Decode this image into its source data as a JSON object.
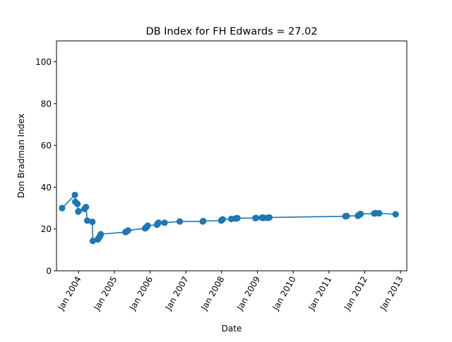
{
  "chart_data": {
    "type": "line",
    "title": "DB Index for FH Edwards = 27.02",
    "xlabel": "Date",
    "ylabel": "Don Bradman Index",
    "ylim": [
      0,
      110
    ],
    "xlim": [
      "2003-05-21",
      "2013-03-06"
    ],
    "yticks": [
      0,
      20,
      40,
      60,
      80,
      100
    ],
    "xticks": [
      {
        "date": "2004-01-01",
        "label": "Jan 2004"
      },
      {
        "date": "2005-01-01",
        "label": "Jan 2005"
      },
      {
        "date": "2006-01-01",
        "label": "Jan 2006"
      },
      {
        "date": "2007-01-01",
        "label": "Jan 2007"
      },
      {
        "date": "2008-01-01",
        "label": "Jan 2008"
      },
      {
        "date": "2009-01-01",
        "label": "Jan 2009"
      },
      {
        "date": "2010-01-01",
        "label": "Jan 2010"
      },
      {
        "date": "2011-01-01",
        "label": "Jan 2011"
      },
      {
        "date": "2012-01-01",
        "label": "Jan 2012"
      },
      {
        "date": "2013-01-01",
        "label": "Jan 2013"
      }
    ],
    "grid": false,
    "color": "#1f77b4",
    "x": [
      "2003-07-17",
      "2003-11-25",
      "2003-11-29",
      "2003-12-21",
      "2003-12-29",
      "2004-01-02",
      "2004-03-02",
      "2004-03-17",
      "2004-03-30",
      "2004-05-21",
      "2004-05-26",
      "2004-07-16",
      "2004-07-22",
      "2004-08-04",
      "2004-08-11",
      "2004-08-15",
      "2005-04-24",
      "2005-05-04",
      "2005-05-21",
      "2005-11-10",
      "2005-11-17",
      "2005-11-28",
      "2005-12-07",
      "2006-03-12",
      "2006-03-19",
      "2006-03-28",
      "2006-05-28",
      "2006-10-30",
      "2007-06-22",
      "2007-06-28",
      "2007-12-28",
      "2008-01-03",
      "2008-01-12",
      "2008-04-09",
      "2008-05-23",
      "2008-06-01",
      "2008-06-10",
      "2008-12-11",
      "2008-12-18",
      "2009-02-15",
      "2009-02-25",
      "2009-03-05",
      "2009-04-14",
      "2009-04-22",
      "2009-05-03",
      "2011-06-18",
      "2011-06-25",
      "2011-07-02",
      "2011-10-24",
      "2011-10-31",
      "2011-11-07",
      "2011-11-14",
      "2011-11-21",
      "2012-04-07",
      "2012-04-15",
      "2012-04-22",
      "2012-05-28",
      "2012-11-12"
    ],
    "y": [
      30.0,
      36.3,
      33.0,
      32.0,
      28.3,
      28.5,
      29.6,
      30.5,
      24.0,
      23.4,
      14.3,
      15.0,
      15.5,
      16.3,
      16.9,
      17.5,
      18.5,
      18.7,
      19.3,
      20.3,
      20.5,
      21.0,
      21.6,
      22.0,
      22.5,
      23.0,
      23.0,
      23.6,
      23.6,
      23.8,
      24.0,
      24.3,
      24.6,
      24.8,
      25.0,
      25.1,
      25.2,
      25.2,
      25.3,
      25.4,
      25.5,
      25.3,
      25.3,
      25.4,
      25.5,
      26.1,
      26.1,
      26.2,
      26.3,
      26.5,
      26.8,
      27.0,
      27.2,
      27.4,
      27.5,
      27.6,
      27.5,
      27.02
    ]
  }
}
